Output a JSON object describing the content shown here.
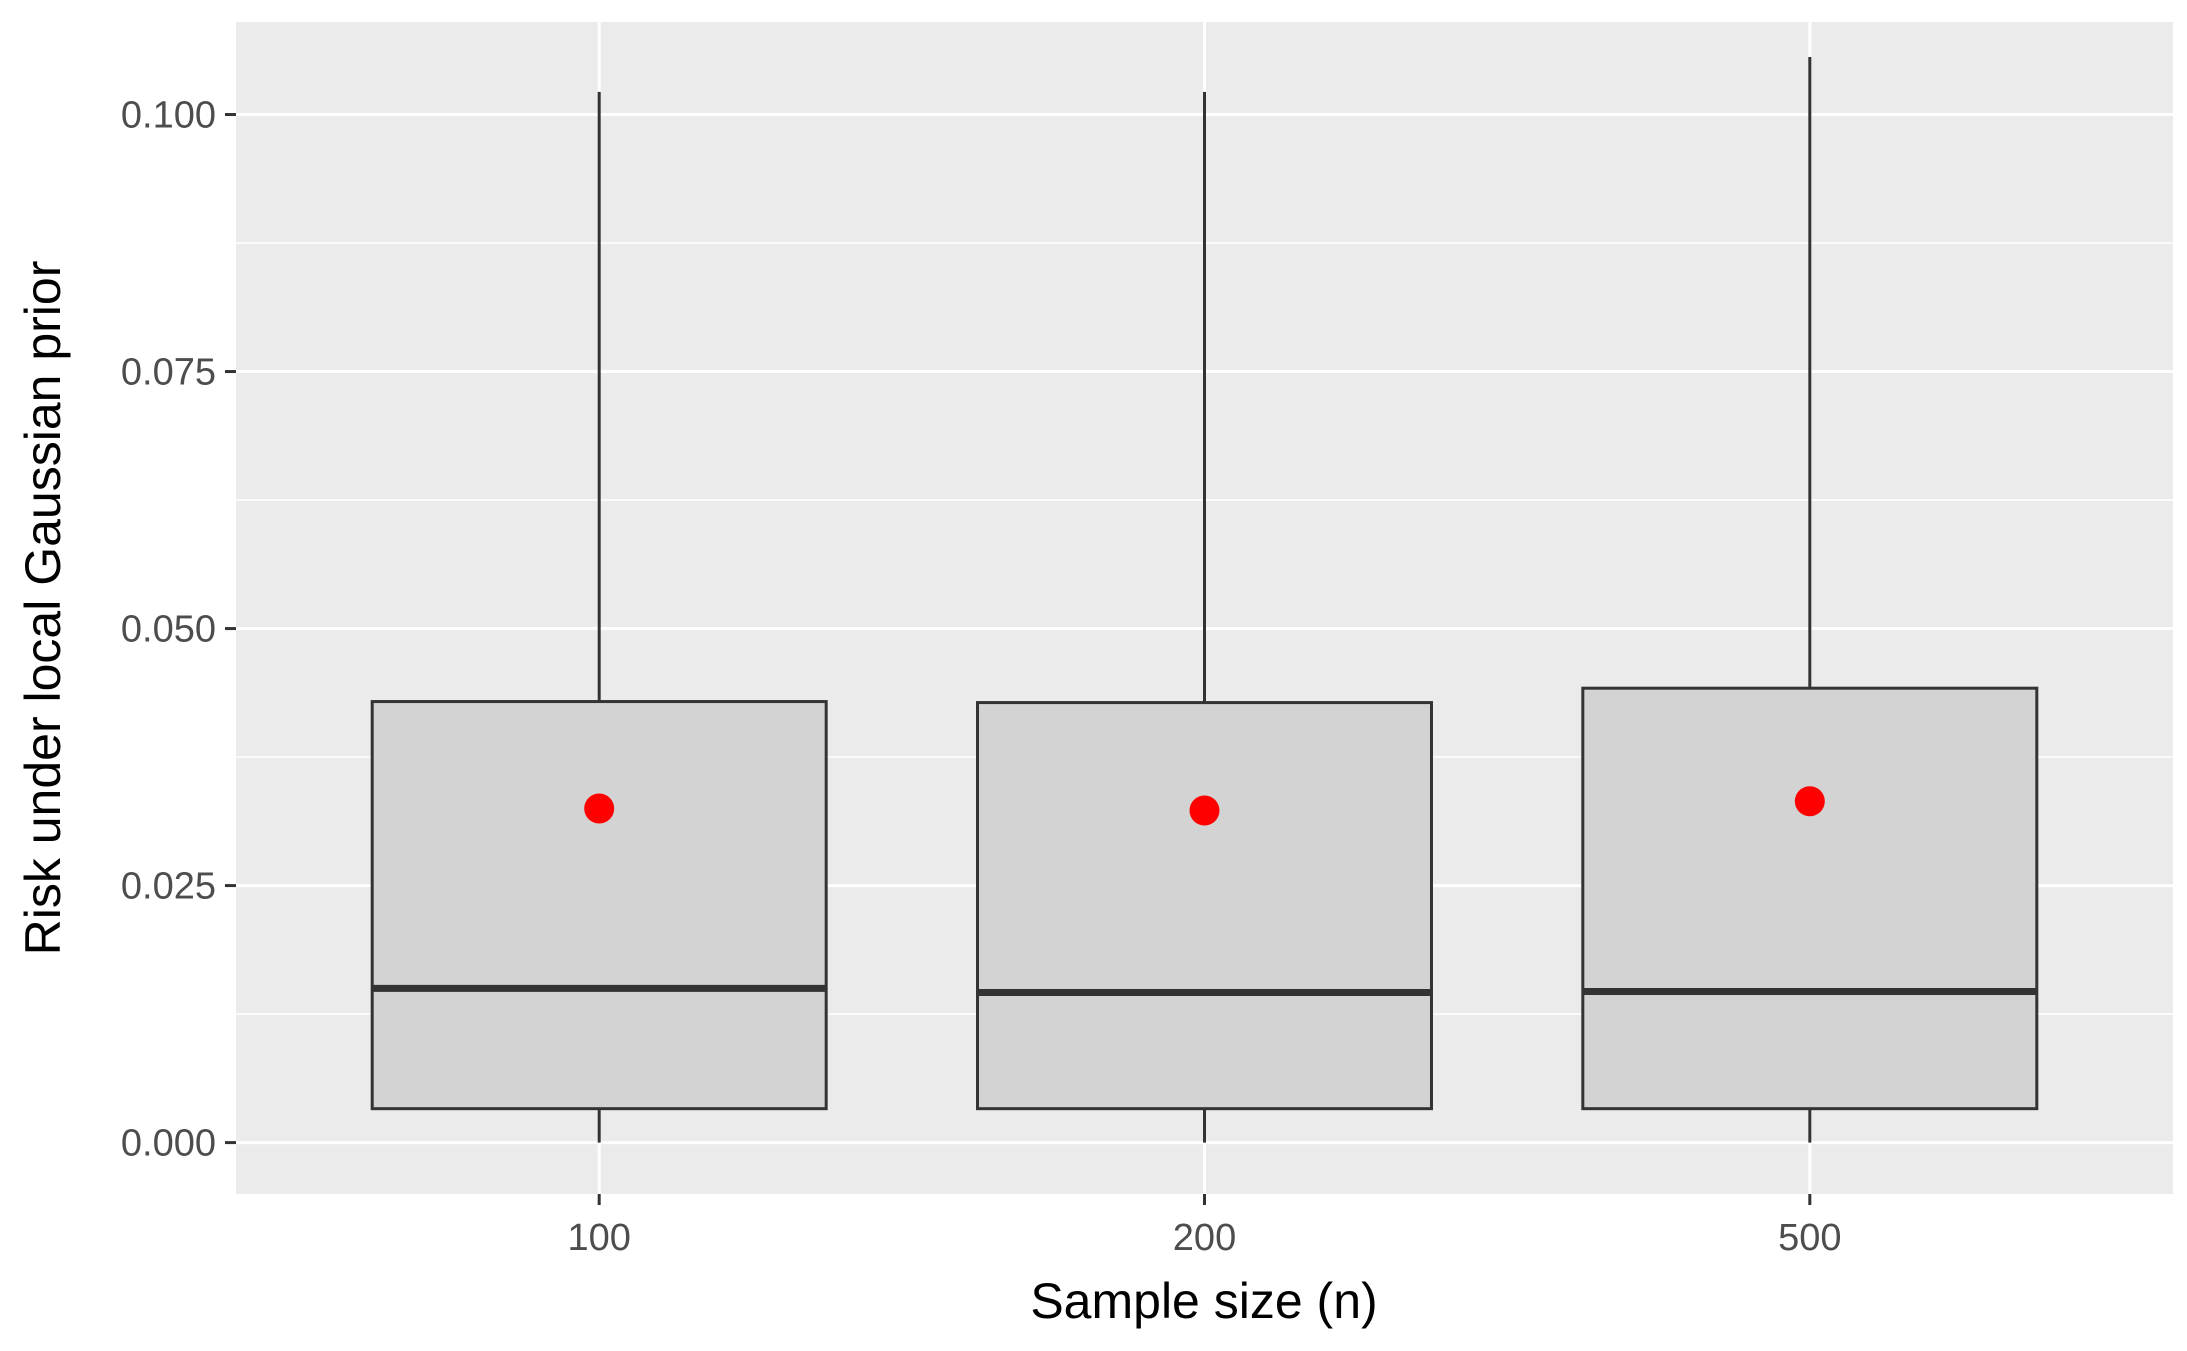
{
  "chart_data": {
    "type": "box",
    "xlabel": "Sample size (n)",
    "ylabel": "Risk under local Gaussian prior",
    "categories": [
      "100",
      "200",
      "500"
    ],
    "ylim": [
      -0.005,
      0.109
    ],
    "yticks": [
      0.0,
      0.025,
      0.05,
      0.075,
      0.1
    ],
    "ytick_labels": [
      "0.000",
      "0.025",
      "0.050",
      "0.075",
      "0.100"
    ],
    "grid": true,
    "boxes": [
      {
        "category": "100",
        "whisker_low": 0.0,
        "q1": 0.0033,
        "median": 0.015,
        "q3": 0.0429,
        "whisker_high": 0.1022,
        "mean": 0.0325
      },
      {
        "category": "200",
        "whisker_low": 0.0,
        "q1": 0.0033,
        "median": 0.0146,
        "q3": 0.0428,
        "whisker_high": 0.1022,
        "mean": 0.0323
      },
      {
        "category": "500",
        "whisker_low": 0.0,
        "q1": 0.0033,
        "median": 0.0147,
        "q3": 0.0442,
        "whisker_high": 0.1056,
        "mean": 0.0332
      }
    ],
    "colors": {
      "panel": "#EBEBEB",
      "grid": "#FFFFFF",
      "box_fill": "#D3D3D3",
      "box_line": "#333333",
      "mean_point": "#FF0000",
      "tick": "#333333"
    }
  }
}
